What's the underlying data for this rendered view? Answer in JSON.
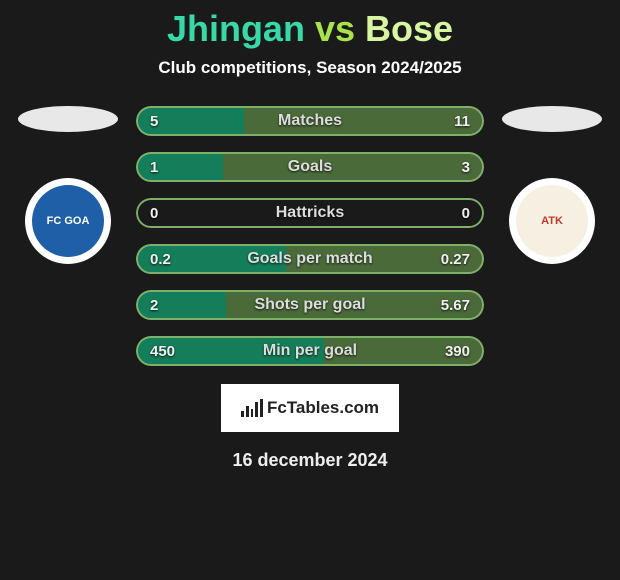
{
  "title": {
    "player1": "Jhingan",
    "vs": "vs",
    "player2": "Bose",
    "p1_color": "#38d9a9",
    "vs_color": "#a9e34b",
    "p2_color": "#d8f5a2"
  },
  "subtitle": "Club competitions, Season 2024/2025",
  "flags": {
    "left_bg": "#e8e8e8",
    "right_bg": "#e8e8e8"
  },
  "clubs": {
    "left": {
      "bg": "#ffffff",
      "text": "FC GOA",
      "text_color": "#0a3a7a",
      "inner_bg": "#1e5fa8"
    },
    "right": {
      "bg": "#ffffff",
      "text": "ATK",
      "text_color": "#c0392b",
      "inner_bg": "#f5f0e1"
    }
  },
  "bars_style": {
    "bg": "#1a1a1a",
    "border_color": "#7fb069",
    "border_width": 2,
    "left_fill_color": "#147d5a",
    "right_fill_color": "#4a6a3a",
    "label_color": "#dddddd",
    "value_color": "#f0f0f0"
  },
  "stats": [
    {
      "label": "Matches",
      "left_val": "5",
      "right_val": "11",
      "left_pct": 31,
      "right_pct": 69
    },
    {
      "label": "Goals",
      "left_val": "1",
      "right_val": "3",
      "left_pct": 25,
      "right_pct": 75
    },
    {
      "label": "Hattricks",
      "left_val": "0",
      "right_val": "0",
      "left_pct": 0,
      "right_pct": 0
    },
    {
      "label": "Goals per match",
      "left_val": "0.2",
      "right_val": "0.27",
      "left_pct": 43,
      "right_pct": 57
    },
    {
      "label": "Shots per goal",
      "left_val": "2",
      "right_val": "5.67",
      "left_pct": 26,
      "right_pct": 74
    },
    {
      "label": "Min per goal",
      "left_val": "450",
      "right_val": "390",
      "left_pct": 54,
      "right_pct": 46
    }
  ],
  "branding": {
    "text": "FcTables.com"
  },
  "date": "16 december 2024"
}
